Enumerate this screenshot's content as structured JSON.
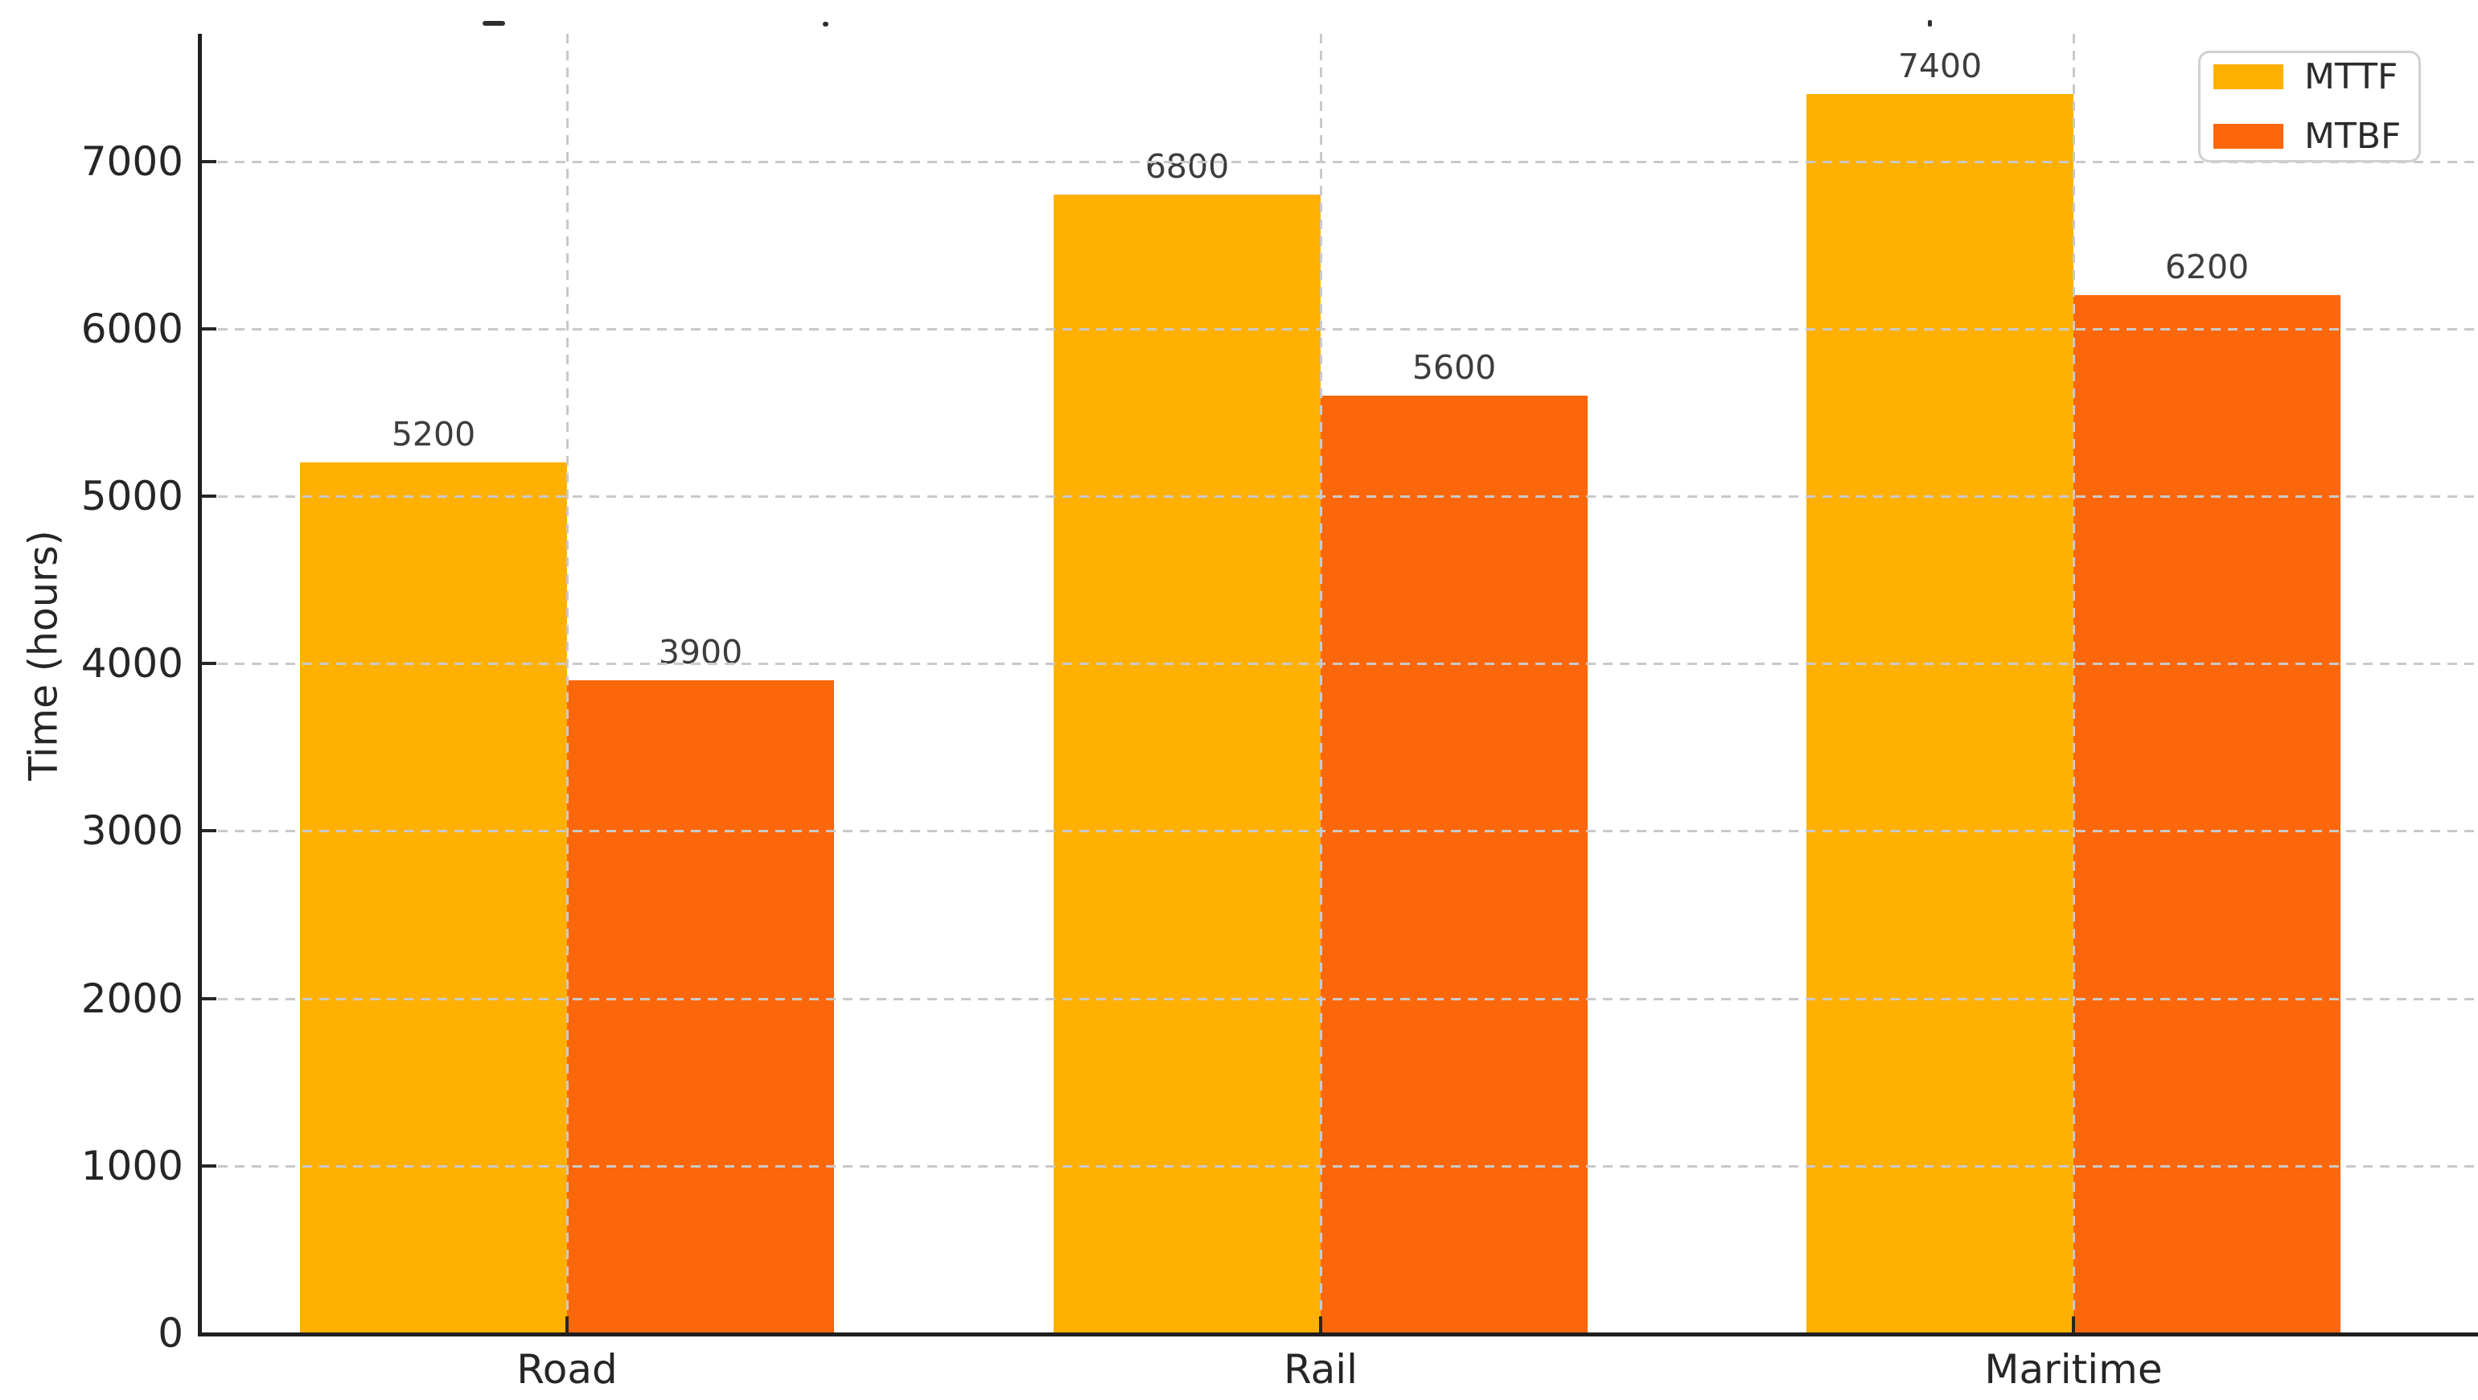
{
  "chart_data": {
    "type": "bar",
    "categories": [
      "Road",
      "Rail",
      "Maritime"
    ],
    "series": [
      {
        "name": "MTTF",
        "color": "#FFB000",
        "values": [
          5200,
          6800,
          7400
        ]
      },
      {
        "name": "MTBF",
        "color": "#FC670C",
        "values": [
          3900,
          5600,
          6200
        ]
      }
    ],
    "bar_value_labels": {
      "MTTF": [
        "5200",
        "6800",
        "7400"
      ],
      "MTBF": [
        "3900",
        "5600",
        "6200"
      ]
    },
    "xlabel": "",
    "ylabel": "Time (hours)",
    "yticks": [
      0,
      1000,
      2000,
      3000,
      4000,
      5000,
      6000,
      7000
    ],
    "ytick_labels": [
      "0",
      "1000",
      "2000",
      "3000",
      "4000",
      "5000",
      "6000",
      "7000"
    ],
    "ylim": [
      0,
      7762
    ],
    "grid": {
      "horizontal": true,
      "vertical": true,
      "style": "dashed",
      "color": "#c9c9c9"
    },
    "legend": {
      "position": "upper right",
      "entries": [
        "MTTF",
        "MTBF"
      ]
    }
  },
  "colors": {
    "background": "#ffffff",
    "axis_spine": "#1f1f1f",
    "tick_label": "#262626",
    "bar_value_label": "#3d3d3d",
    "gridline": "#c9c9c9",
    "legend_border": "#d0d0d0"
  }
}
